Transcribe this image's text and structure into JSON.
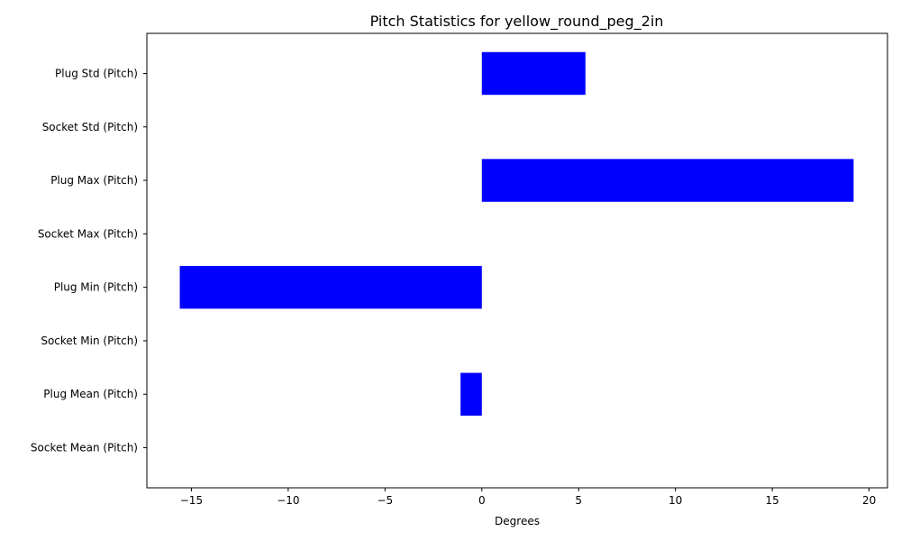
{
  "chart_data": {
    "type": "bar",
    "orientation": "horizontal",
    "title": "Pitch Statistics for yellow_round_peg_2in",
    "xlabel": "Degrees",
    "ylabel": "",
    "categories": [
      "Socket Mean (Pitch)",
      "Plug Mean (Pitch)",
      "Socket Min (Pitch)",
      "Plug Min (Pitch)",
      "Socket Max (Pitch)",
      "Plug Max (Pitch)",
      "Socket Std (Pitch)",
      "Plug Std (Pitch)"
    ],
    "values": [
      0,
      -1.1,
      0,
      -15.6,
      0,
      19.2,
      0,
      5.35
    ],
    "xlim": [
      -17.3,
      20.95
    ],
    "xticks": [
      -15,
      -10,
      -5,
      0,
      5,
      10,
      15,
      20
    ],
    "xtick_labels": [
      "−15",
      "−10",
      "−5",
      "0",
      "5",
      "10",
      "15",
      "20"
    ],
    "bar_color": "#0000ff",
    "grid": false,
    "legend": "none"
  }
}
